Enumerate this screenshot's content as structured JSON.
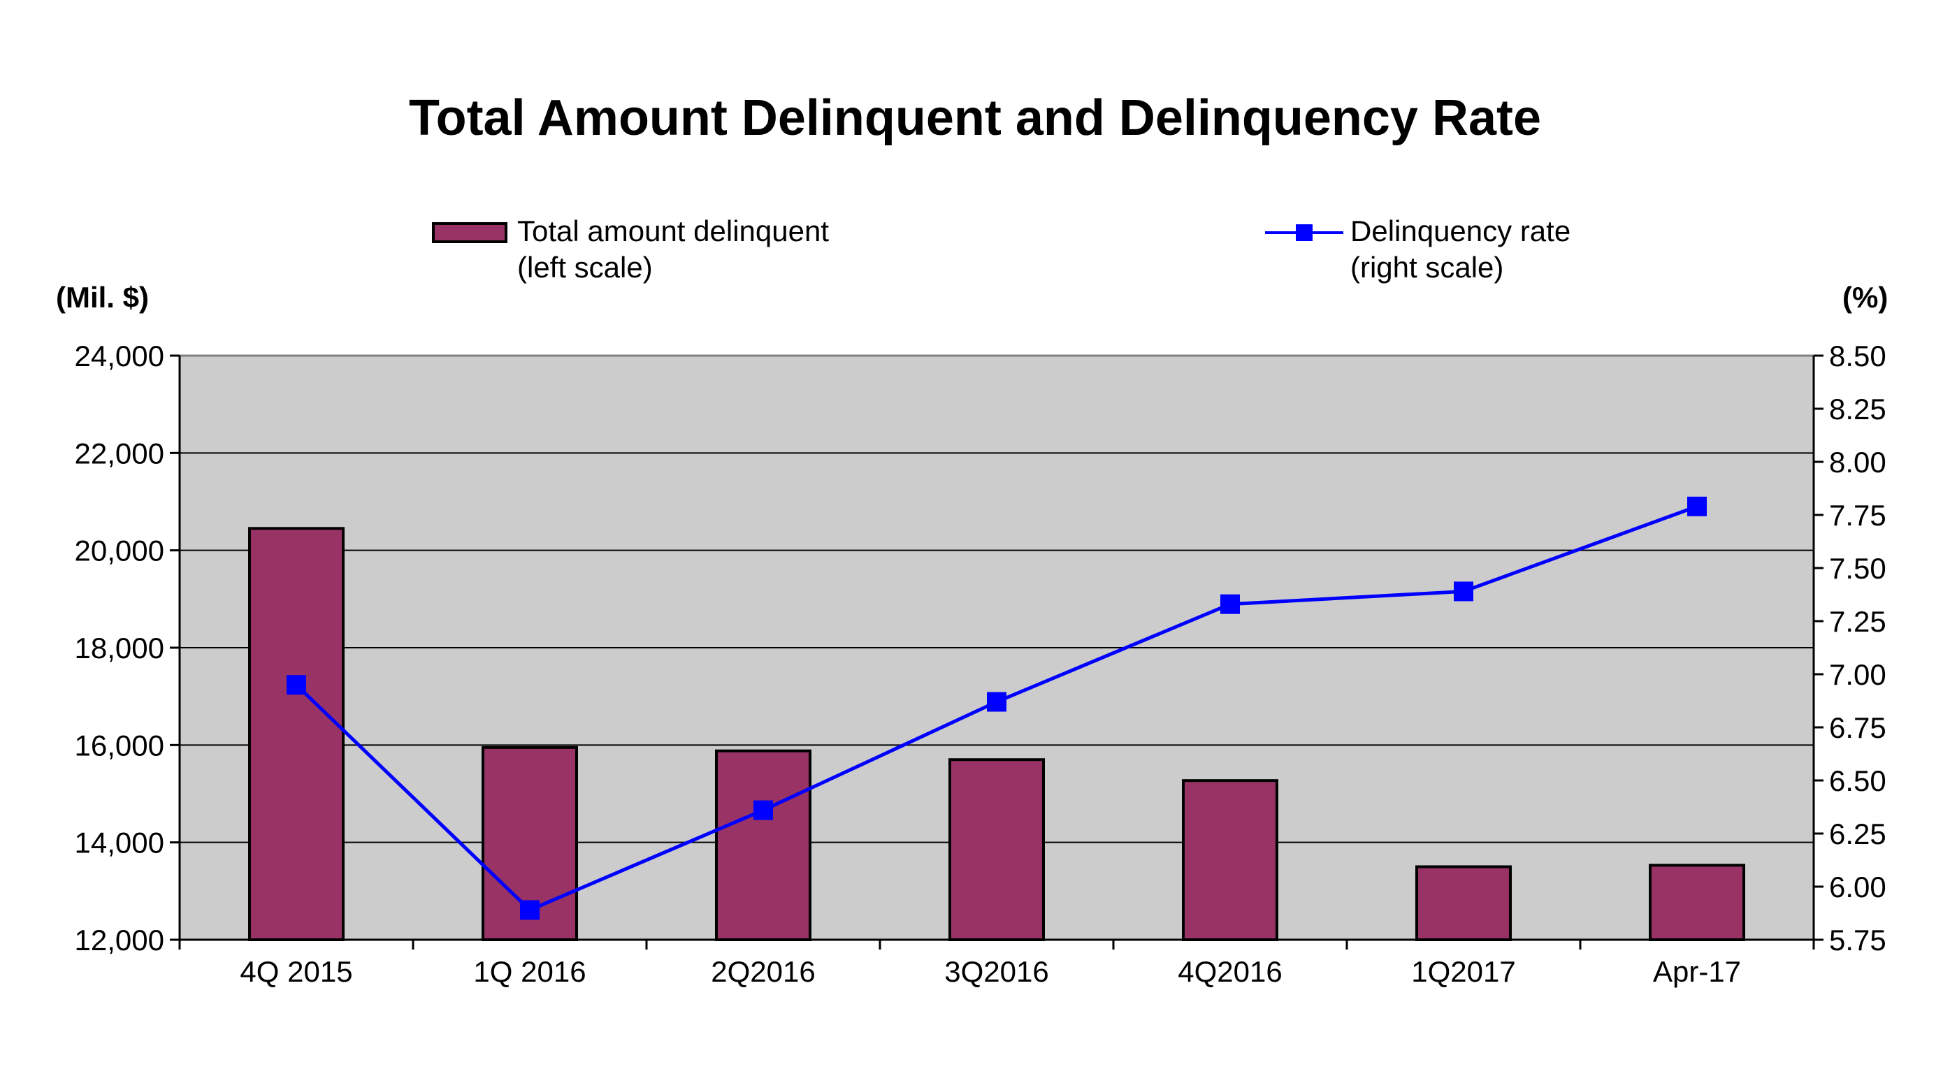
{
  "chart_data": {
    "type": "bar",
    "title": "Total Amount Delinquent and Delinquency Rate",
    "categories": [
      "4Q 2015",
      "1Q 2016",
      "2Q2016",
      "3Q2016",
      "4Q2016",
      "1Q2017",
      "Apr-17"
    ],
    "series": [
      {
        "name": "Total amount delinquent",
        "name_note": "(left scale)",
        "type": "bar",
        "axis": "left",
        "color": "#993366",
        "values": [
          20450,
          15950,
          15880,
          15700,
          15270,
          13500,
          13530
        ]
      },
      {
        "name": "Delinquency rate",
        "name_note": "(right scale)",
        "type": "line",
        "axis": "right",
        "color": "#0000ff",
        "marker": "square",
        "values": [
          6.95,
          5.89,
          6.36,
          6.87,
          7.33,
          7.39,
          7.79
        ]
      }
    ],
    "left_axis": {
      "label": "(Mil. $)",
      "range": [
        12000,
        24000
      ],
      "ticks": [
        "12,000",
        "14,000",
        "16,000",
        "18,000",
        "20,000",
        "22,000",
        "24,000"
      ],
      "tick_values": [
        12000,
        14000,
        16000,
        18000,
        20000,
        22000,
        24000
      ]
    },
    "right_axis": {
      "label": "(%)",
      "range": [
        5.75,
        8.5
      ],
      "ticks": [
        "5.75",
        "6.00",
        "6.25",
        "6.50",
        "6.75",
        "7.00",
        "7.25",
        "7.50",
        "7.75",
        "8.00",
        "8.25",
        "8.50"
      ],
      "tick_values": [
        5.75,
        6.0,
        6.25,
        6.5,
        6.75,
        7.0,
        7.25,
        7.5,
        7.75,
        8.0,
        8.25,
        8.5
      ]
    },
    "plot_background": "#cccccc",
    "grid": true,
    "legend_position": "top"
  }
}
